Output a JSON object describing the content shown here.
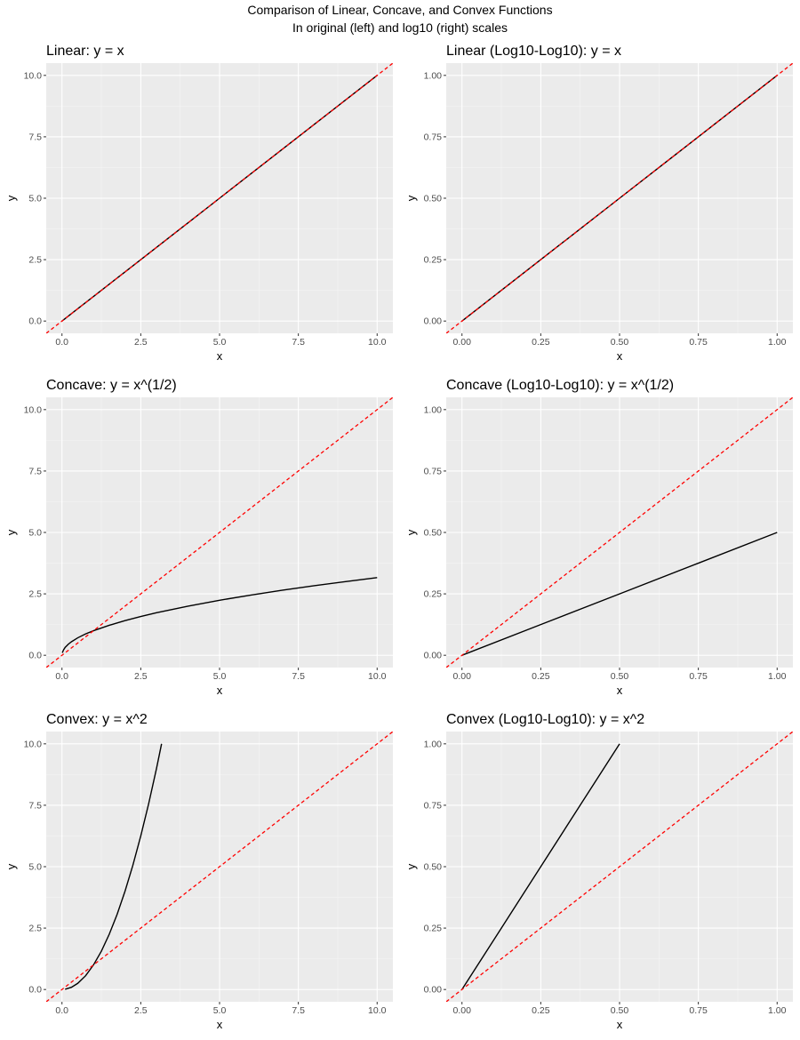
{
  "figure": {
    "title": "Comparison of Linear, Concave, and Convex Functions",
    "subtitle": "In original (left) and log10 (right) scales"
  },
  "colors": {
    "panel_bg": "#ebebeb",
    "grid_major": "#ffffff",
    "grid_minor": "#f5f5f5",
    "curve": "#000000",
    "reference": "#ff0000",
    "tick_text": "#4d4d4d"
  },
  "chart_data": [
    {
      "type": "line",
      "title": "Linear: y = x",
      "xlabel": "x",
      "ylabel": "y",
      "xlim": [
        -0.5,
        10.5
      ],
      "ylim": [
        -0.5,
        10.5
      ],
      "x_ticks": [
        0,
        2.5,
        5,
        7.5,
        10
      ],
      "x_tick_labels": [
        "0.0",
        "2.5",
        "5.0",
        "7.5",
        "10.0"
      ],
      "y_ticks": [
        0,
        2.5,
        5,
        7.5,
        10
      ],
      "y_tick_labels": [
        "0.0",
        "2.5",
        "5.0",
        "7.5",
        "10.0"
      ],
      "grid": true,
      "series": [
        {
          "x": [
            0,
            0.5,
            1,
            2,
            3,
            4,
            5,
            6,
            7,
            8,
            9,
            10
          ],
          "y": [
            0,
            0.5,
            1,
            2,
            3,
            4,
            5,
            6,
            7,
            8,
            9,
            10
          ],
          "color": "#000000",
          "dash": "solid"
        }
      ],
      "reference_line": {
        "label": "y = x",
        "slope": 1,
        "intercept": 0,
        "color": "#ff0000",
        "dash": "dashed"
      }
    },
    {
      "type": "line",
      "title": "Linear (Log10-Log10): y = x",
      "xlabel": "x",
      "ylabel": "y",
      "xlim": [
        -0.05,
        1.05
      ],
      "ylim": [
        -0.05,
        1.05
      ],
      "x_ticks": [
        0,
        0.25,
        0.5,
        0.75,
        1
      ],
      "x_tick_labels": [
        "0.00",
        "0.25",
        "0.50",
        "0.75",
        "1.00"
      ],
      "y_ticks": [
        0,
        0.25,
        0.5,
        0.75,
        1
      ],
      "y_tick_labels": [
        "0.00",
        "0.25",
        "0.50",
        "0.75",
        "1.00"
      ],
      "grid": true,
      "series": [
        {
          "x": [
            0,
            0.25,
            0.5,
            0.75,
            1
          ],
          "y": [
            0,
            0.25,
            0.5,
            0.75,
            1
          ],
          "color": "#000000",
          "dash": "solid"
        }
      ],
      "reference_line": {
        "label": "y = x",
        "slope": 1,
        "intercept": 0,
        "color": "#ff0000",
        "dash": "dashed"
      }
    },
    {
      "type": "line",
      "title": "Concave: y = x^(1/2)",
      "xlabel": "x",
      "ylabel": "y",
      "xlim": [
        -0.5,
        10.5
      ],
      "ylim": [
        -0.5,
        10.5
      ],
      "x_ticks": [
        0,
        2.5,
        5,
        7.5,
        10
      ],
      "x_tick_labels": [
        "0.0",
        "2.5",
        "5.0",
        "7.5",
        "10.0"
      ],
      "y_ticks": [
        0,
        2.5,
        5,
        7.5,
        10
      ],
      "y_tick_labels": [
        "0.0",
        "2.5",
        "5.0",
        "7.5",
        "10.0"
      ],
      "grid": true,
      "series": [
        {
          "x": [
            0.01,
            0.05,
            0.1,
            0.2,
            0.3,
            0.5,
            0.75,
            1,
            1.5,
            2,
            2.5,
            3,
            4,
            5,
            6,
            7,
            8,
            9,
            10
          ],
          "y": [
            0.1,
            0.22,
            0.32,
            0.45,
            0.55,
            0.71,
            0.87,
            1,
            1.22,
            1.41,
            1.58,
            1.73,
            2,
            2.24,
            2.45,
            2.65,
            2.83,
            3,
            3.16
          ],
          "color": "#000000",
          "dash": "solid"
        }
      ],
      "reference_line": {
        "label": "y = x",
        "slope": 1,
        "intercept": 0,
        "color": "#ff0000",
        "dash": "dashed"
      }
    },
    {
      "type": "line",
      "title": "Concave (Log10-Log10): y = x^(1/2)",
      "xlabel": "x",
      "ylabel": "y",
      "xlim": [
        -0.05,
        1.05
      ],
      "ylim": [
        -0.05,
        1.05
      ],
      "x_ticks": [
        0,
        0.25,
        0.5,
        0.75,
        1
      ],
      "x_tick_labels": [
        "0.00",
        "0.25",
        "0.50",
        "0.75",
        "1.00"
      ],
      "y_ticks": [
        0,
        0.25,
        0.5,
        0.75,
        1
      ],
      "y_tick_labels": [
        "0.00",
        "0.25",
        "0.50",
        "0.75",
        "1.00"
      ],
      "grid": true,
      "series": [
        {
          "x": [
            0,
            0.25,
            0.5,
            0.75,
            1
          ],
          "y": [
            0,
            0.125,
            0.25,
            0.375,
            0.5
          ],
          "color": "#000000",
          "dash": "solid"
        }
      ],
      "reference_line": {
        "label": "y = x",
        "slope": 1,
        "intercept": 0,
        "color": "#ff0000",
        "dash": "dashed"
      }
    },
    {
      "type": "line",
      "title": "Convex: y = x^2",
      "xlabel": "x",
      "ylabel": "y",
      "xlim": [
        -0.5,
        10.5
      ],
      "ylim": [
        -0.5,
        10.5
      ],
      "x_ticks": [
        0,
        2.5,
        5,
        7.5,
        10
      ],
      "x_tick_labels": [
        "0.0",
        "2.5",
        "5.0",
        "7.5",
        "10.0"
      ],
      "y_ticks": [
        0,
        2.5,
        5,
        7.5,
        10
      ],
      "y_tick_labels": [
        "0.0",
        "2.5",
        "5.0",
        "7.5",
        "10.0"
      ],
      "grid": true,
      "series": [
        {
          "x": [
            0.1,
            0.3,
            0.5,
            0.75,
            1,
            1.25,
            1.5,
            1.75,
            2,
            2.25,
            2.5,
            2.75,
            3,
            3.16
          ],
          "y": [
            0.01,
            0.09,
            0.25,
            0.56,
            1,
            1.56,
            2.25,
            3.06,
            4,
            5.06,
            6.25,
            7.56,
            9,
            10
          ],
          "color": "#000000",
          "dash": "solid"
        }
      ],
      "reference_line": {
        "label": "y = x",
        "slope": 1,
        "intercept": 0,
        "color": "#ff0000",
        "dash": "dashed"
      }
    },
    {
      "type": "line",
      "title": "Convex (Log10-Log10): y = x^2",
      "xlabel": "x",
      "ylabel": "y",
      "xlim": [
        -0.05,
        1.05
      ],
      "ylim": [
        -0.05,
        1.05
      ],
      "x_ticks": [
        0,
        0.25,
        0.5,
        0.75,
        1
      ],
      "x_tick_labels": [
        "0.00",
        "0.25",
        "0.50",
        "0.75",
        "1.00"
      ],
      "y_ticks": [
        0,
        0.25,
        0.5,
        0.75,
        1
      ],
      "y_tick_labels": [
        "0.00",
        "0.25",
        "0.50",
        "0.75",
        "1.00"
      ],
      "grid": true,
      "series": [
        {
          "x": [
            0,
            0.125,
            0.25,
            0.375,
            0.5
          ],
          "y": [
            0,
            0.25,
            0.5,
            0.75,
            1
          ],
          "color": "#000000",
          "dash": "solid"
        }
      ],
      "reference_line": {
        "label": "y = x",
        "slope": 1,
        "intercept": 0,
        "color": "#ff0000",
        "dash": "dashed"
      }
    }
  ]
}
